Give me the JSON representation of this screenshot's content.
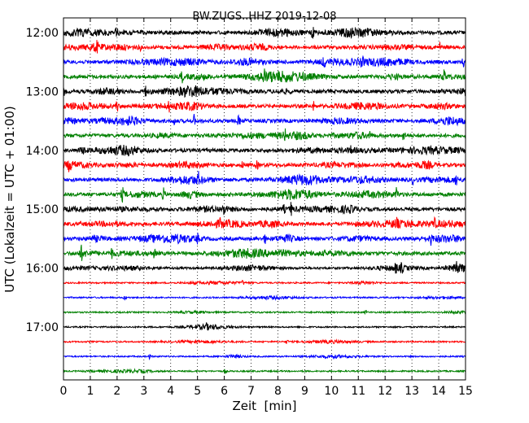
{
  "chart_data": {
    "type": "line",
    "title": "BW.ZUGS..HHZ 2019-12-08",
    "xlabel": "Zeit  [min]",
    "ylabel": "UTC (Lokalzeit = UTC + 01:00)",
    "xlim": [
      0,
      15
    ],
    "x_ticks": [
      "0",
      "1",
      "2",
      "3",
      "4",
      "5",
      "6",
      "7",
      "8",
      "9",
      "10",
      "11",
      "12",
      "13",
      "14",
      "15"
    ],
    "y_ticks": [
      "12:00",
      "13:00",
      "14:00",
      "15:00",
      "16:00",
      "17:00"
    ],
    "grid": "vertical dotted lines at each minute",
    "trace_interval_minutes": 15,
    "colors_cycle": [
      "#000000",
      "#ff0000",
      "#0000ff",
      "#008000"
    ],
    "series": [
      {
        "start": "12:00",
        "color": "#000000"
      },
      {
        "start": "12:15",
        "color": "#ff0000"
      },
      {
        "start": "12:30",
        "color": "#0000ff"
      },
      {
        "start": "12:45",
        "color": "#008000"
      },
      {
        "start": "13:00",
        "color": "#000000"
      },
      {
        "start": "13:15",
        "color": "#ff0000"
      },
      {
        "start": "13:30",
        "color": "#0000ff"
      },
      {
        "start": "13:45",
        "color": "#008000"
      },
      {
        "start": "14:00",
        "color": "#000000"
      },
      {
        "start": "14:15",
        "color": "#ff0000"
      },
      {
        "start": "14:30",
        "color": "#0000ff"
      },
      {
        "start": "14:45",
        "color": "#008000"
      },
      {
        "start": "15:00",
        "color": "#000000"
      },
      {
        "start": "15:15",
        "color": "#ff0000"
      },
      {
        "start": "15:30",
        "color": "#0000ff"
      },
      {
        "start": "15:45",
        "color": "#008000"
      },
      {
        "start": "16:00",
        "color": "#000000"
      },
      {
        "start": "16:15",
        "color": "#ff0000"
      },
      {
        "start": "16:30",
        "color": "#0000ff"
      },
      {
        "start": "16:45",
        "color": "#008000"
      },
      {
        "start": "17:00",
        "color": "#000000"
      },
      {
        "start": "17:15",
        "color": "#ff0000"
      },
      {
        "start": "17:30",
        "color": "#0000ff"
      },
      {
        "start": "17:45",
        "color": "#008000"
      }
    ]
  }
}
